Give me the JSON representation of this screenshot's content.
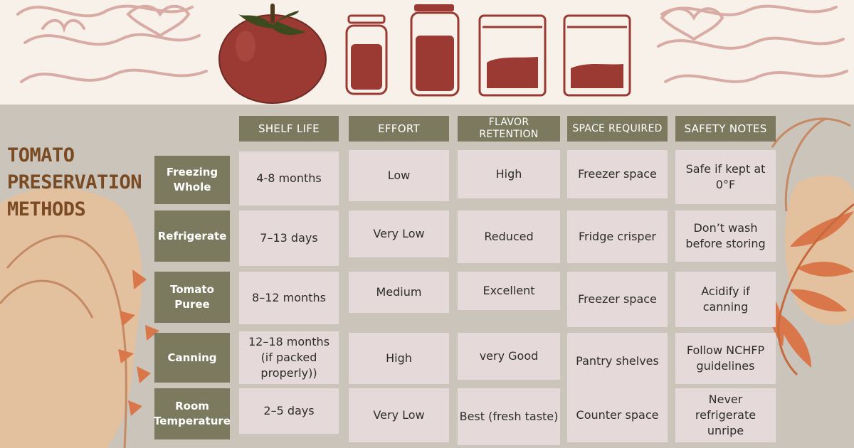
{
  "title": {
    "line1": "TOMATO",
    "line2": "PRESERVATION",
    "line3": "METHODS"
  },
  "table": {
    "headers": [
      "SHELF LIFE",
      "EFFORT",
      "FLAVOR RETENTION",
      "SPACE REQUIRED",
      "SAFETY NOTES"
    ],
    "rows": [
      {
        "method": "Freezing Whole",
        "cells": [
          "4-8 months",
          "Low",
          "High",
          "Freezer space",
          "Safe if kept at 0°F"
        ]
      },
      {
        "method": "Refrigerate",
        "cells": [
          "7–13 days",
          "Very Low",
          "Reduced",
          "Fridge crisper",
          "Don’t wash before storing"
        ]
      },
      {
        "method": "Tomato Puree",
        "cells": [
          "8–12 months",
          "Medium",
          "Excellent",
          "Freezer space",
          "Acidify if canning"
        ]
      },
      {
        "method": "Canning",
        "cells": [
          "12–18 months (if packed properly))",
          "High",
          "very Good",
          "Pantry shelves",
          "Follow NCHFP guidelines"
        ]
      },
      {
        "method": "Room Temperature",
        "cells": [
          "2–5 days",
          "Very Low",
          "Best (fresh taste)",
          "Counter space",
          "Never refrigerate unripe"
        ]
      }
    ]
  },
  "colors": {
    "header": "#7b7a5f",
    "cell": "#e6d9d9",
    "tomato": "#9a3a32",
    "title": "#7a4a22",
    "background": "#cbc4ba",
    "banner": "#f7f1ea"
  }
}
